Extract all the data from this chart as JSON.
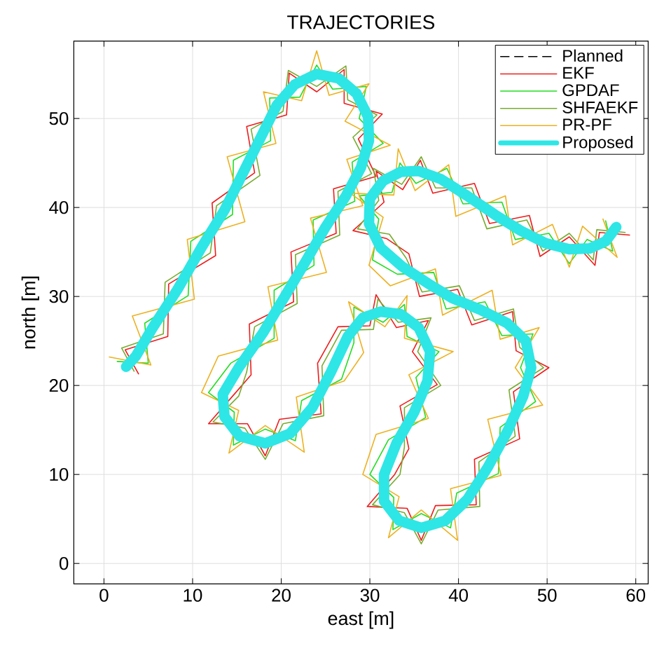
{
  "chart_data": {
    "type": "line",
    "title": "TRAJECTORIES",
    "xlabel": "east [m]",
    "ylabel": "north [m]",
    "xlim": [
      -3.4,
      61.4
    ],
    "ylim": [
      -2.3,
      58.7
    ],
    "xticks": [
      0,
      10,
      20,
      30,
      40,
      50,
      60
    ],
    "yticks": [
      0,
      10,
      20,
      30,
      40,
      50
    ],
    "grid": true,
    "legend": "top right",
    "marker": "none",
    "series": [
      {
        "name": "Planned",
        "color": "#000000",
        "line_style": "dashed",
        "x": [
          null
        ],
        "values": [
          null
        ]
      },
      {
        "name": "EKF",
        "color": "#ee1c1c",
        "x": [
          3.9,
          2.4,
          7.2,
          7.3,
          12.6,
          12.2,
          17.0,
          16.1,
          20.6,
          20.9,
          24,
          27.1,
          27.1,
          31.4,
          28.7,
          30.7,
          25.9,
          26.2,
          21.1,
          21.4,
          16.4,
          16.6,
          14.6,
          11.8,
          16.2,
          18.2,
          19.8,
          24.5,
          24.1,
          26.4,
          30.0,
          30.7,
          33.0,
          36.6,
          34.8,
          37.6,
          33.4,
          34.4,
          32.8,
          29.7,
          34.2,
          35.8,
          37.4,
          42.0,
          41.8,
          46.9,
          46.2,
          50.2,
          46.5,
          46.1,
          41.5,
          39.9,
          35.6,
          34.4,
          31.9,
          28.1,
          31.6,
          30.7,
          33.7,
          35.7,
          37.1,
          41.8,
          43.5,
          48.0,
          49.2,
          52.5,
          55.4,
          55.9,
          59.3
        ],
        "values": [
          21.3,
          24.0,
          25.5,
          31.4,
          34.6,
          40.5,
          43.9,
          49.1,
          50.4,
          55.1,
          53.0,
          55.5,
          51.7,
          50.5,
          47.7,
          43.5,
          42.1,
          37.1,
          35.0,
          29.4,
          26.9,
          21.2,
          18.9,
          15.7,
          15.7,
          12.1,
          16.2,
          16.8,
          22.5,
          26.6,
          26.7,
          30.2,
          26.5,
          27.3,
          23.8,
          20.1,
          17.7,
          12.9,
          10.0,
          6.4,
          6.2,
          2.6,
          6.5,
          6.6,
          11.7,
          14.0,
          19.3,
          22.0,
          23.9,
          28.3,
          26.8,
          30.8,
          30.0,
          34.8,
          36.5,
          37.4,
          40.6,
          44.1,
          42.0,
          45.3,
          41.6,
          42.7,
          38.2,
          39.1,
          34.5,
          36.7,
          33.5,
          37.2,
          36.9
        ]
      },
      {
        "name": "GPDAF",
        "color": "#22dd22",
        "x": [
          1.5,
          5.0,
          4.6,
          9.5,
          9.8,
          14.5,
          14.6,
          18.8,
          18.7,
          22.1,
          24,
          25.8,
          29.6,
          28.8,
          31.5,
          28.0,
          28.3,
          23.6,
          23.7,
          19.2,
          19.2,
          14.3,
          11.8,
          14.7,
          14.6,
          18.2,
          21.6,
          22.3,
          26.8,
          28.2,
          28.2,
          31.5,
          33.9,
          34.2,
          37.8,
          35.2,
          36.3,
          32.1,
          30.0,
          32.7,
          32.6,
          35.8,
          39.1,
          39.8,
          44.5,
          44.7,
          48.7,
          47.0,
          48.4,
          44.9,
          43.0,
          38.6,
          37.2,
          33.1,
          30.3,
          31.0,
          28.8,
          32.5,
          33.4,
          35.2,
          38.7,
          40.5,
          44.9,
          46.4,
          50.2,
          52.5,
          54.5,
          57.4,
          56.6
        ],
        "values": [
          22.7,
          22.5,
          27.0,
          30.1,
          36.2,
          39.2,
          45.3,
          47.5,
          52.3,
          52.4,
          56.0,
          53.3,
          53.6,
          50.0,
          47.2,
          45.1,
          40.7,
          38.6,
          33.5,
          30.7,
          25.3,
          22.5,
          19.2,
          17.0,
          13.3,
          15.1,
          13.8,
          18.3,
          20.7,
          24.8,
          28.8,
          27.1,
          29.1,
          25.5,
          23.8,
          20.9,
          16.4,
          13.9,
          10.0,
          7.4,
          3.8,
          5.6,
          4.0,
          7.9,
          10.1,
          15.3,
          18.2,
          22.0,
          25.8,
          25.6,
          29.4,
          28.6,
          32.7,
          32.5,
          34.1,
          38.7,
          41.3,
          41.7,
          45.0,
          42.7,
          44.4,
          40.4,
          40.6,
          36.4,
          37.1,
          33.7,
          36.4,
          35.1,
          38.5
        ]
      },
      {
        "name": "SHFAEKF",
        "color": "#77ac30",
        "x": [
          3.4,
          2.0,
          6.7,
          6.9,
          12.0,
          12.7,
          17.6,
          16.6,
          20.2,
          20.8,
          24,
          27.3,
          27.5,
          30.8,
          28.1,
          30.2,
          26.4,
          26.6,
          21.6,
          21.8,
          17.0,
          16.1,
          15.2,
          12.3,
          15.9,
          18.2,
          20.2,
          24.8,
          24.6,
          26.8,
          30.4,
          30.9,
          33.2,
          36.9,
          35.4,
          38.0,
          33.9,
          33.9,
          33.4,
          30.3,
          33.9,
          35.8,
          37.7,
          42.4,
          42.3,
          46.4,
          45.7,
          49.6,
          46.9,
          46.2,
          41.8,
          40.1,
          35.9,
          34.1,
          32.2,
          28.6,
          31.0,
          30.4,
          33.6,
          35.8,
          37.4,
          41.5,
          43.2,
          47.7,
          49.5,
          52.5,
          55.2,
          55.6,
          58.8
        ],
        "values": [
          21.6,
          24.2,
          25.8,
          31.6,
          34.9,
          40.2,
          43.6,
          48.8,
          50.8,
          55.4,
          53.6,
          55.9,
          52.1,
          50.4,
          47.9,
          43.8,
          41.8,
          36.9,
          34.7,
          29.2,
          26.6,
          21.5,
          18.8,
          15.9,
          15.2,
          11.7,
          15.7,
          16.6,
          22.2,
          26.2,
          26.3,
          29.7,
          27.1,
          27.6,
          23.8,
          20.0,
          17.5,
          13.1,
          10.0,
          6.6,
          5.7,
          2.2,
          6.0,
          6.4,
          11.4,
          14.3,
          19.5,
          22.0,
          24.3,
          28.6,
          27.3,
          31.2,
          30.5,
          34.3,
          37.0,
          37.6,
          40.8,
          44.4,
          42.6,
          45.7,
          42.2,
          42.2,
          37.6,
          38.6,
          35.1,
          37.1,
          34.1,
          37.5,
          37.2
        ]
      },
      {
        "name": "PR-PF",
        "color": "#edb120",
        "x": [
          0.6,
          5.3,
          3.2,
          10.2,
          9.4,
          15.9,
          13.9,
          19.4,
          18.0,
          22.3,
          24,
          25.4,
          29.9,
          27.2,
          32.3,
          27.4,
          29.2,
          23.3,
          25.1,
          18.5,
          19.6,
          12.9,
          11.0,
          15.2,
          14.1,
          18.2,
          22.6,
          21.7,
          27.1,
          29.3,
          27.6,
          31.7,
          34.2,
          33.9,
          39.4,
          34.4,
          36.6,
          30.7,
          29.2,
          33.3,
          32.1,
          35.8,
          39.9,
          39.1,
          44.8,
          43.3,
          49.5,
          46.4,
          49.1,
          44.7,
          43.8,
          38.2,
          37.4,
          32.3,
          29.9,
          31.5,
          27.8,
          32.7,
          33.2,
          35.1,
          38.9,
          39.7,
          45.3,
          46.1,
          50.6,
          52.5,
          54.0,
          57.9,
          56.3
        ],
        "values": [
          23.2,
          22.3,
          27.8,
          29.7,
          36.4,
          38.4,
          45.7,
          47.2,
          53.0,
          52.0,
          57.6,
          52.6,
          53.9,
          49.7,
          47.0,
          45.4,
          40.2,
          38.8,
          32.7,
          31.1,
          25.1,
          23.3,
          19.2,
          17.2,
          12.4,
          15.5,
          12.5,
          18.7,
          20.5,
          23.7,
          29.4,
          26.6,
          30.1,
          25.3,
          23.8,
          21.2,
          16.3,
          14.5,
          10.0,
          7.5,
          2.9,
          6.0,
          2.6,
          8.4,
          9.9,
          16.2,
          17.8,
          22.0,
          26.5,
          25.2,
          30.7,
          27.9,
          33.1,
          31.2,
          33.5,
          38.9,
          41.6,
          41.4,
          46.6,
          41.9,
          44.8,
          39.0,
          41.3,
          35.8,
          38.1,
          33.3,
          37.9,
          34.4,
          38.7
        ]
      },
      {
        "name": "Proposed",
        "color": "#2ee6e6",
        "x": [
          2.5,
          3.6,
          5.5,
          8.3,
          11,
          13.6,
          16,
          17.8,
          19.5,
          21.5,
          24,
          26.5,
          28.5,
          29.8,
          29.9,
          29,
          27.3,
          25,
          22.8,
          20.4,
          18,
          15.2,
          13.4,
          13.6,
          15.3,
          18.2,
          21,
          23.5,
          25.6,
          27.5,
          29.2,
          31.2,
          33.5,
          35.5,
          36.8,
          36.5,
          35,
          33,
          31.6,
          31.6,
          33.3,
          35.8,
          38.5,
          41,
          43.3,
          45.5,
          47.3,
          48.2,
          47.6,
          45.5,
          42.5,
          39.3,
          36.5,
          33.6,
          31.2,
          29.9,
          30,
          31.5,
          33.5,
          35.5,
          38,
          41,
          44.1,
          47,
          49.8,
          52.5,
          54.8,
          56.6,
          57.8
        ],
        "values": [
          22.1,
          23.3,
          26.5,
          30.8,
          35.5,
          39.7,
          44.5,
          48.1,
          51.5,
          53.8,
          55,
          54.5,
          52.8,
          50.2,
          47.5,
          44.5,
          41.3,
          37.8,
          34,
          30,
          26,
          22,
          19,
          16.5,
          14.3,
          13.5,
          14.6,
          17.5,
          21.5,
          25.5,
          27.6,
          28.3,
          28,
          26.5,
          23.8,
          20.5,
          17,
          13.5,
          10,
          7,
          4.8,
          4,
          4.8,
          7.2,
          10.8,
          14.8,
          18.8,
          22,
          25,
          27,
          28.5,
          29.8,
          31.5,
          33.4,
          35.5,
          38.2,
          41,
          43,
          44,
          44.1,
          43.2,
          41.3,
          39.2,
          37.4,
          36,
          35.3,
          35.4,
          36.2,
          37.8
        ]
      }
    ]
  }
}
